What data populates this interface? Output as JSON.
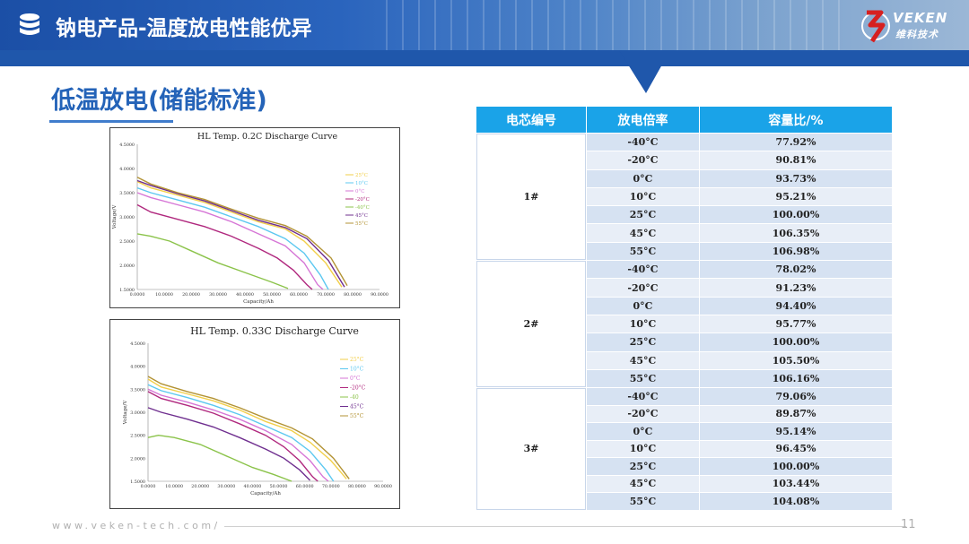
{
  "header": {
    "title": "钠电产品-温度放电性能优异",
    "logo_name": "VEKEN",
    "logo_subtitle": "维科技术",
    "icon": "database-icon"
  },
  "section": {
    "title": "低温放电(储能标准)"
  },
  "table": {
    "headers": [
      "电芯编号",
      "放电倍率",
      "容量比/%"
    ],
    "groups": [
      {
        "cell": "1#",
        "rows": [
          {
            "temp": "-40°C",
            "ratio": "77.92%"
          },
          {
            "temp": "-20°C",
            "ratio": "90.81%"
          },
          {
            "temp": "0°C",
            "ratio": "93.73%"
          },
          {
            "temp": "10°C",
            "ratio": "95.21%"
          },
          {
            "temp": "25°C",
            "ratio": "100.00%"
          },
          {
            "temp": "45°C",
            "ratio": "106.35%"
          },
          {
            "temp": "55°C",
            "ratio": "106.98%"
          }
        ]
      },
      {
        "cell": "2#",
        "rows": [
          {
            "temp": "-40°C",
            "ratio": "78.02%"
          },
          {
            "temp": "-20°C",
            "ratio": "91.23%"
          },
          {
            "temp": "0°C",
            "ratio": "94.40%"
          },
          {
            "temp": "10°C",
            "ratio": "95.77%"
          },
          {
            "temp": "25°C",
            "ratio": "100.00%"
          },
          {
            "temp": "45°C",
            "ratio": "105.50%"
          },
          {
            "temp": "55°C",
            "ratio": "106.16%"
          }
        ]
      },
      {
        "cell": "3#",
        "rows": [
          {
            "temp": "-40°C",
            "ratio": "79.06%"
          },
          {
            "temp": "-20°C",
            "ratio": "89.87%"
          },
          {
            "temp": "0°C",
            "ratio": "95.14%"
          },
          {
            "temp": "10°C",
            "ratio": "96.45%"
          },
          {
            "temp": "25°C",
            "ratio": "100.00%"
          },
          {
            "temp": "45°C",
            "ratio": "103.44%"
          },
          {
            "temp": "55°C",
            "ratio": "104.08%"
          }
        ]
      }
    ]
  },
  "chart_data": [
    {
      "type": "line",
      "title": "HL Temp. 0.2C  Discharge Curve",
      "xlabel": "Capacity/Ah",
      "ylabel": "Voltage/V",
      "xlim": [
        0,
        90
      ],
      "ylim": [
        1.5,
        4.5
      ],
      "xticks": [
        "0.0000",
        "10.0000",
        "20.0000",
        "30.0000",
        "40.0000",
        "50.0000",
        "60.0000",
        "70.0000",
        "80.0000",
        "90.0000"
      ],
      "yticks": [
        "1.5000",
        "2.0000",
        "2.5000",
        "3.0000",
        "3.5000",
        "4.0000",
        "4.5000"
      ],
      "grid": false,
      "legend": "right",
      "series": [
        {
          "name": "25°C",
          "color": "#f2cf4a",
          "points": [
            [
              0,
              3.73
            ],
            [
              5,
              3.6
            ],
            [
              15,
              3.45
            ],
            [
              25,
              3.3
            ],
            [
              35,
              3.1
            ],
            [
              45,
              2.9
            ],
            [
              55,
              2.75
            ],
            [
              62,
              2.5
            ],
            [
              70,
              2.05
            ],
            [
              76,
              1.55
            ]
          ]
        },
        {
          "name": "10°C",
          "color": "#5cc8f0",
          "points": [
            [
              0,
              3.6
            ],
            [
              5,
              3.5
            ],
            [
              15,
              3.35
            ],
            [
              25,
              3.2
            ],
            [
              35,
              3.0
            ],
            [
              45,
              2.8
            ],
            [
              55,
              2.55
            ],
            [
              62,
              2.25
            ],
            [
              68,
              1.8
            ],
            [
              71,
              1.5
            ]
          ]
        },
        {
          "name": "0°C",
          "color": "#d676d6",
          "points": [
            [
              0,
              3.5
            ],
            [
              5,
              3.4
            ],
            [
              15,
              3.25
            ],
            [
              25,
              3.1
            ],
            [
              35,
              2.9
            ],
            [
              45,
              2.65
            ],
            [
              55,
              2.4
            ],
            [
              62,
              2.05
            ],
            [
              67,
              1.6
            ],
            [
              69,
              1.5
            ]
          ]
        },
        {
          "name": "-20°C",
          "color": "#b0287e",
          "points": [
            [
              0,
              3.25
            ],
            [
              5,
              3.1
            ],
            [
              15,
              2.95
            ],
            [
              25,
              2.8
            ],
            [
              35,
              2.6
            ],
            [
              45,
              2.35
            ],
            [
              52,
              2.15
            ],
            [
              58,
              1.9
            ],
            [
              63,
              1.6
            ],
            [
              65,
              1.5
            ]
          ]
        },
        {
          "name": "-40°C",
          "color": "#8bc34a",
          "points": [
            [
              0,
              2.65
            ],
            [
              5,
              2.6
            ],
            [
              12,
              2.5
            ],
            [
              20,
              2.3
            ],
            [
              30,
              2.05
            ],
            [
              40,
              1.85
            ],
            [
              50,
              1.65
            ],
            [
              56,
              1.52
            ]
          ]
        },
        {
          "name": "45°C",
          "color": "#6f2f8f",
          "points": [
            [
              0,
              3.75
            ],
            [
              5,
              3.65
            ],
            [
              15,
              3.48
            ],
            [
              25,
              3.33
            ],
            [
              35,
              3.13
            ],
            [
              45,
              2.93
            ],
            [
              55,
              2.78
            ],
            [
              63,
              2.55
            ],
            [
              71,
              2.1
            ],
            [
              77,
              1.55
            ]
          ]
        },
        {
          "name": "55°C",
          "color": "#b39334",
          "points": [
            [
              0,
              3.82
            ],
            [
              5,
              3.68
            ],
            [
              15,
              3.5
            ],
            [
              25,
              3.36
            ],
            [
              35,
              3.16
            ],
            [
              45,
              2.97
            ],
            [
              55,
              2.82
            ],
            [
              63,
              2.6
            ],
            [
              72,
              2.15
            ],
            [
              78,
              1.58
            ]
          ]
        }
      ]
    },
    {
      "type": "line",
      "title": "HL Temp. 0.33C Discharge Curve",
      "xlabel": "Capacity/Ah",
      "ylabel": "Voltage/V",
      "xlim": [
        0,
        90
      ],
      "ylim": [
        1.5,
        4.5
      ],
      "xticks": [
        "0.0000",
        "10.0000",
        "20.0000",
        "30.0000",
        "40.0000",
        "50.0000",
        "60.0000",
        "70.0000",
        "80.0000",
        "90.0000"
      ],
      "yticks": [
        "1.5000",
        "2.0000",
        "2.5000",
        "3.0000",
        "3.5000",
        "4.0000",
        "4.5000"
      ],
      "grid": false,
      "legend": "right",
      "series": [
        {
          "name": "25°C",
          "color": "#f2cf4a",
          "points": [
            [
              0,
              3.72
            ],
            [
              5,
              3.55
            ],
            [
              15,
              3.4
            ],
            [
              25,
              3.25
            ],
            [
              35,
              3.05
            ],
            [
              45,
              2.8
            ],
            [
              55,
              2.6
            ],
            [
              62,
              2.35
            ],
            [
              70,
              1.95
            ],
            [
              76,
              1.55
            ]
          ]
        },
        {
          "name": "10°C",
          "color": "#5cc8f0",
          "points": [
            [
              0,
              3.6
            ],
            [
              5,
              3.47
            ],
            [
              15,
              3.32
            ],
            [
              25,
              3.15
            ],
            [
              35,
              2.95
            ],
            [
              45,
              2.7
            ],
            [
              55,
              2.45
            ],
            [
              62,
              2.15
            ],
            [
              68,
              1.75
            ],
            [
              71,
              1.5
            ]
          ]
        },
        {
          "name": "0°C",
          "color": "#d676d6",
          "points": [
            [
              0,
              3.5
            ],
            [
              5,
              3.37
            ],
            [
              15,
              3.22
            ],
            [
              25,
              3.05
            ],
            [
              35,
              2.85
            ],
            [
              45,
              2.6
            ],
            [
              55,
              2.3
            ],
            [
              62,
              1.95
            ],
            [
              67,
              1.6
            ],
            [
              69,
              1.5
            ]
          ]
        },
        {
          "name": "-20°C",
          "color": "#b0287e",
          "points": [
            [
              0,
              3.45
            ],
            [
              5,
              3.3
            ],
            [
              15,
              3.15
            ],
            [
              25,
              2.98
            ],
            [
              35,
              2.75
            ],
            [
              45,
              2.5
            ],
            [
              52,
              2.25
            ],
            [
              58,
              1.95
            ],
            [
              63,
              1.6
            ],
            [
              65,
              1.5
            ]
          ]
        },
        {
          "name": "-40",
          "color": "#8bc34a",
          "points": [
            [
              0,
              2.45
            ],
            [
              4,
              2.5
            ],
            [
              10,
              2.45
            ],
            [
              20,
              2.3
            ],
            [
              30,
              2.05
            ],
            [
              40,
              1.8
            ],
            [
              48,
              1.65
            ],
            [
              55,
              1.5
            ]
          ]
        },
        {
          "name": "45°C",
          "color": "#6f2f8f",
          "points": [
            [
              0,
              3.1
            ],
            [
              5,
              3.0
            ],
            [
              15,
              2.85
            ],
            [
              25,
              2.68
            ],
            [
              35,
              2.45
            ],
            [
              45,
              2.2
            ],
            [
              52,
              2.0
            ],
            [
              58,
              1.75
            ],
            [
              62,
              1.52
            ]
          ]
        },
        {
          "name": "55°C",
          "color": "#b39334",
          "points": [
            [
              0,
              3.78
            ],
            [
              5,
              3.62
            ],
            [
              15,
              3.45
            ],
            [
              25,
              3.3
            ],
            [
              35,
              3.1
            ],
            [
              45,
              2.87
            ],
            [
              55,
              2.66
            ],
            [
              63,
              2.42
            ],
            [
              71,
              2.0
            ],
            [
              77,
              1.55
            ]
          ]
        }
      ]
    }
  ],
  "footer": {
    "url": "www.veken-tech.com/",
    "page": "11"
  }
}
